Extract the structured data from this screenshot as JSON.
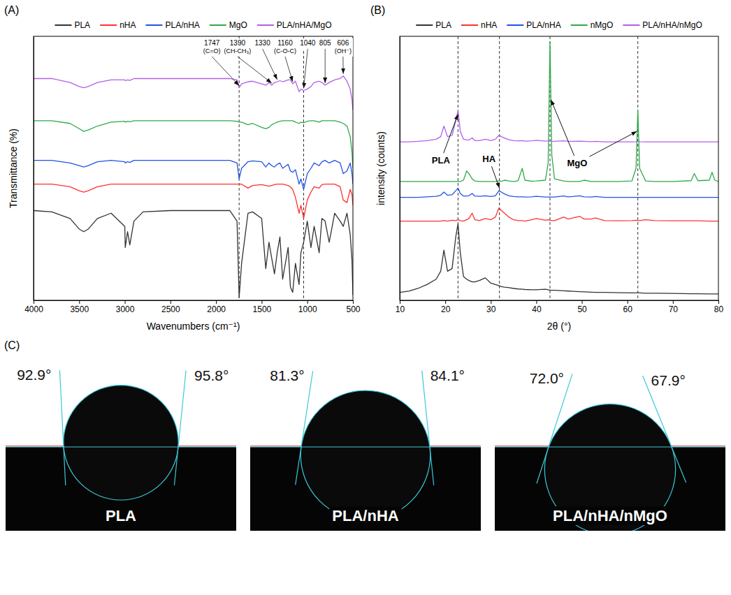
{
  "chart_data": [
    {
      "type": "line",
      "panel": "(A)",
      "x_label": "Wavenumbers (cm⁻¹)",
      "y_label": "Transmittance (%)",
      "x": [
        4000,
        3800,
        3600,
        3500,
        3450,
        3400,
        3300,
        3150,
        3000,
        2995,
        2970,
        2945,
        2900,
        2800,
        2500,
        2000,
        1850,
        1770,
        1747,
        1720,
        1650,
        1600,
        1500,
        1455,
        1420,
        1390,
        1360,
        1330,
        1300,
        1270,
        1210,
        1185,
        1160,
        1130,
        1090,
        1070,
        1040,
        1000,
        960,
        925,
        870,
        840,
        805,
        760,
        700,
        640,
        606,
        565,
        530,
        510,
        500
      ],
      "xlim": [
        4000,
        500
      ],
      "xticks": [
        4000,
        3500,
        3000,
        2500,
        2000,
        1500,
        1000,
        500
      ],
      "ylim": [
        0,
        100
      ],
      "tick_labels": "x",
      "grid": false,
      "legend": "top",
      "reference_lines": [
        1747,
        1040
      ],
      "annotations": [
        {
          "label": "1747",
          "note": "(C=O)",
          "x": 1747
        },
        {
          "label": "1390",
          "note": "(CH-CH₃)",
          "x": 1390
        },
        {
          "label": "1330",
          "x": 1330
        },
        {
          "label": "1160",
          "note": "(C-O-C)",
          "x": 1160
        },
        {
          "label": "1040",
          "x": 1040
        },
        {
          "label": "805",
          "x": 805
        },
        {
          "label": "606",
          "note": "(OH⁻)",
          "x": 606
        }
      ],
      "series": [
        {
          "name": "PLA",
          "color": "#333333",
          "values": [
            34,
            33.5,
            31,
            27,
            26,
            27,
            31,
            33,
            28,
            20,
            26,
            21,
            30,
            33.5,
            34,
            34,
            34,
            30,
            1,
            14,
            33,
            33.5,
            31,
            12,
            22,
            16,
            10,
            18,
            24,
            8,
            20,
            5,
            3,
            14,
            6,
            18,
            22,
            30,
            20,
            28,
            18,
            31,
            30,
            22,
            33,
            30,
            28,
            33,
            25,
            15,
            2
          ]
        },
        {
          "name": "nHA",
          "color": "#ff3030",
          "values": [
            44,
            44,
            43,
            41.5,
            41,
            41.5,
            43,
            44,
            44,
            44,
            44,
            44,
            44,
            44,
            44,
            44,
            44,
            44,
            44,
            44,
            42.5,
            43.5,
            43.8,
            43.5,
            43.2,
            43.5,
            43.8,
            44,
            44,
            44,
            43.5,
            43,
            42,
            39,
            33,
            36,
            31,
            38,
            41,
            43,
            42.5,
            43.8,
            44,
            44,
            44,
            43,
            38,
            37,
            42,
            40,
            36
          ]
        },
        {
          "name": "PLA/nHA",
          "color": "#2352e6",
          "values": [
            53,
            53,
            52,
            51,
            50.5,
            51,
            52.5,
            53,
            52.5,
            52,
            52.5,
            52.2,
            53,
            53,
            53,
            53,
            53,
            52,
            46,
            50,
            52.5,
            52.8,
            52.5,
            50.5,
            52,
            51,
            50.5,
            51.5,
            52,
            50,
            51.5,
            49,
            48.5,
            49.5,
            44,
            46,
            42,
            48,
            50,
            52,
            51,
            52.5,
            53,
            52,
            53,
            52,
            48,
            49,
            52,
            48,
            44
          ]
        },
        {
          "name": "MgO",
          "color": "#2eaa4a",
          "values": [
            68,
            68,
            67,
            65,
            64,
            64.5,
            66,
            67.5,
            67.8,
            67.5,
            67.8,
            67.6,
            68,
            68,
            68,
            68,
            68,
            67.8,
            67.5,
            67.5,
            66.5,
            67,
            65.5,
            65,
            65.5,
            66.5,
            67,
            67.5,
            67.8,
            68,
            68,
            68,
            68,
            67.5,
            67,
            67.5,
            67.2,
            67.8,
            68,
            68,
            67.5,
            68,
            68,
            68,
            68,
            67.5,
            67,
            66,
            62,
            56,
            50
          ]
        },
        {
          "name": "PLA/nHA/MgO",
          "color": "#b060e8",
          "values": [
            84,
            84,
            82.5,
            81,
            80.5,
            81,
            82.5,
            83.5,
            83.5,
            83.2,
            83.5,
            83.3,
            84,
            84,
            84,
            84,
            84,
            83.5,
            80.5,
            82,
            82.8,
            83,
            82,
            81.5,
            82.5,
            81.5,
            82.5,
            82.8,
            83.2,
            82.8,
            83.5,
            83.5,
            82,
            83,
            79,
            80,
            79.5,
            80,
            81,
            82.5,
            83,
            82.5,
            81.5,
            82.5,
            83.5,
            84,
            85,
            83,
            80,
            76,
            72
          ]
        }
      ]
    },
    {
      "type": "line",
      "panel": "(B)",
      "x_label": "2θ (°)",
      "y_label": "intensity (counts)",
      "x": [
        10,
        12,
        14,
        16,
        18,
        19,
        19.7,
        20.5,
        21.5,
        22.3,
        22.8,
        23.3,
        24,
        24.7,
        25.2,
        25.9,
        26.5,
        27.5,
        28.8,
        30,
        31,
        31.8,
        32.3,
        33,
        34,
        35,
        36,
        36.9,
        37.5,
        39,
        40,
        42,
        42.6,
        43,
        43.4,
        44,
        46,
        47,
        48,
        49.5,
        50.5,
        52,
        53,
        55,
        58,
        61,
        61.9,
        62.3,
        62.7,
        64,
        66,
        70,
        74,
        74.7,
        75.5,
        78,
        78.6,
        79.2,
        80
      ],
      "xlim": [
        10,
        80
      ],
      "xticks": [
        10,
        20,
        30,
        40,
        50,
        60,
        70,
        80
      ],
      "ylim": [
        0,
        100
      ],
      "tick_labels": "x",
      "grid": false,
      "legend": "top",
      "reference_lines": [
        22.8,
        31.9,
        43,
        62.3
      ],
      "annotations": [
        {
          "label": "PLA",
          "points": [
            [
              22.8,
              70.5
            ]
          ]
        },
        {
          "label": "HA",
          "points": [
            [
              31.9,
              42.5
            ]
          ]
        },
        {
          "label": "MgO",
          "points": [
            [
              43.2,
              76
            ],
            [
              62.1,
              64
            ]
          ]
        }
      ],
      "series": [
        {
          "name": "PLA",
          "color": "#333333",
          "values": [
            3,
            3.5,
            4.5,
            6,
            8,
            11,
            19,
            11,
            12,
            24,
            29,
            18,
            9,
            8,
            7.5,
            7,
            7,
            7.5,
            8.5,
            6.5,
            6,
            5.5,
            5.2,
            5,
            4.8,
            4.5,
            4.3,
            4.2,
            4.1,
            4,
            4,
            4.2,
            4,
            3.8,
            3.8,
            3.8,
            3.6,
            3.5,
            3.4,
            3.3,
            3.2,
            3.1,
            3,
            3,
            2.9,
            2.8,
            2.8,
            2.8,
            2.8,
            2.7,
            2.7,
            2.6,
            2.5,
            2.5,
            2.5,
            2.4,
            2.4,
            2.4,
            2.4
          ]
        },
        {
          "name": "nHA",
          "color": "#ff3030",
          "values": [
            30,
            30,
            30,
            30,
            30,
            30,
            30.2,
            30,
            30.3,
            30.2,
            30.5,
            30.2,
            30,
            30.5,
            31,
            33,
            30.5,
            30.2,
            31,
            30.5,
            31.5,
            35,
            34,
            33,
            31.5,
            30.5,
            30.2,
            30.2,
            30,
            30.5,
            31,
            30.3,
            30.5,
            30.3,
            30.2,
            30.2,
            31.5,
            30.8,
            31.2,
            31.8,
            30.8,
            30.8,
            31.2,
            30.2,
            30.1,
            30.2,
            30.3,
            30.2,
            30.2,
            30.5,
            30.2,
            30.1,
            30.1,
            30.1,
            30.1,
            30,
            30,
            30,
            30
          ]
        },
        {
          "name": "PLA/nHA",
          "color": "#2352e6",
          "values": [
            39,
            39,
            39,
            39.2,
            39.4,
            39.8,
            41,
            39.8,
            40,
            41.5,
            42.5,
            40.5,
            39.5,
            39.5,
            39.6,
            40.5,
            39.5,
            39.4,
            39.6,
            39.3,
            39.6,
            41.5,
            41,
            40.3,
            39.6,
            39.3,
            39.2,
            39.2,
            39.1,
            39.2,
            39.4,
            39.1,
            39.1,
            39.1,
            39.1,
            39.1,
            39.5,
            39.2,
            39.3,
            39.6,
            39.2,
            39.1,
            39.3,
            39,
            39,
            39,
            39,
            39,
            39,
            39,
            39,
            39,
            39,
            39,
            39,
            39,
            39,
            39,
            39
          ]
        },
        {
          "name": "nMgO",
          "color": "#2eaa4a",
          "values": [
            45,
            45,
            45,
            45,
            45,
            45,
            45,
            45,
            45,
            45,
            45,
            45,
            45.5,
            49,
            48,
            46,
            45.2,
            45,
            45,
            45,
            45,
            45.3,
            45.1,
            45.5,
            45.2,
            45,
            45.3,
            50,
            45.5,
            45.1,
            45.2,
            45.5,
            52,
            98,
            55,
            46,
            45.2,
            45,
            45,
            45,
            45.5,
            45,
            45,
            45,
            45,
            45.2,
            50,
            72,
            50,
            45.2,
            45,
            45,
            45.3,
            48,
            45.3,
            45.5,
            48.5,
            45.5,
            45
          ]
        },
        {
          "name": "PLA/nHA/nMgO",
          "color": "#b060e8",
          "values": [
            60,
            60,
            60.2,
            60.5,
            61,
            62,
            66,
            62,
            62.5,
            68,
            72,
            64,
            61,
            60.8,
            60.7,
            61.5,
            60.5,
            60.5,
            61,
            60.5,
            61,
            62.5,
            62,
            61.5,
            60.8,
            60.5,
            60.4,
            60.5,
            60.3,
            60.4,
            60.6,
            60.3,
            60.4,
            60.5,
            60.3,
            60.2,
            60.4,
            60.2,
            60.2,
            60.3,
            60.2,
            60.1,
            60.2,
            60,
            60,
            60,
            60.1,
            60.3,
            60.1,
            60,
            60,
            60,
            60,
            60,
            60,
            60,
            60,
            60,
            60
          ]
        }
      ]
    },
    {
      "type": "contact_angle",
      "panel": "(C)",
      "samples": [
        {
          "name": "PLA",
          "angles": [
            92.9,
            95.8
          ],
          "angle_labels": [
            "92.9°",
            "95.8°"
          ]
        },
        {
          "name": "PLA/nHA",
          "angles": [
            81.3,
            84.1
          ],
          "angle_labels": [
            "81.3°",
            "84.1°"
          ]
        },
        {
          "name": "PLA/nHA/nMgO",
          "angles": [
            72.0,
            67.9
          ],
          "angle_labels": [
            "72.0°",
            "67.9°"
          ]
        }
      ]
    }
  ]
}
